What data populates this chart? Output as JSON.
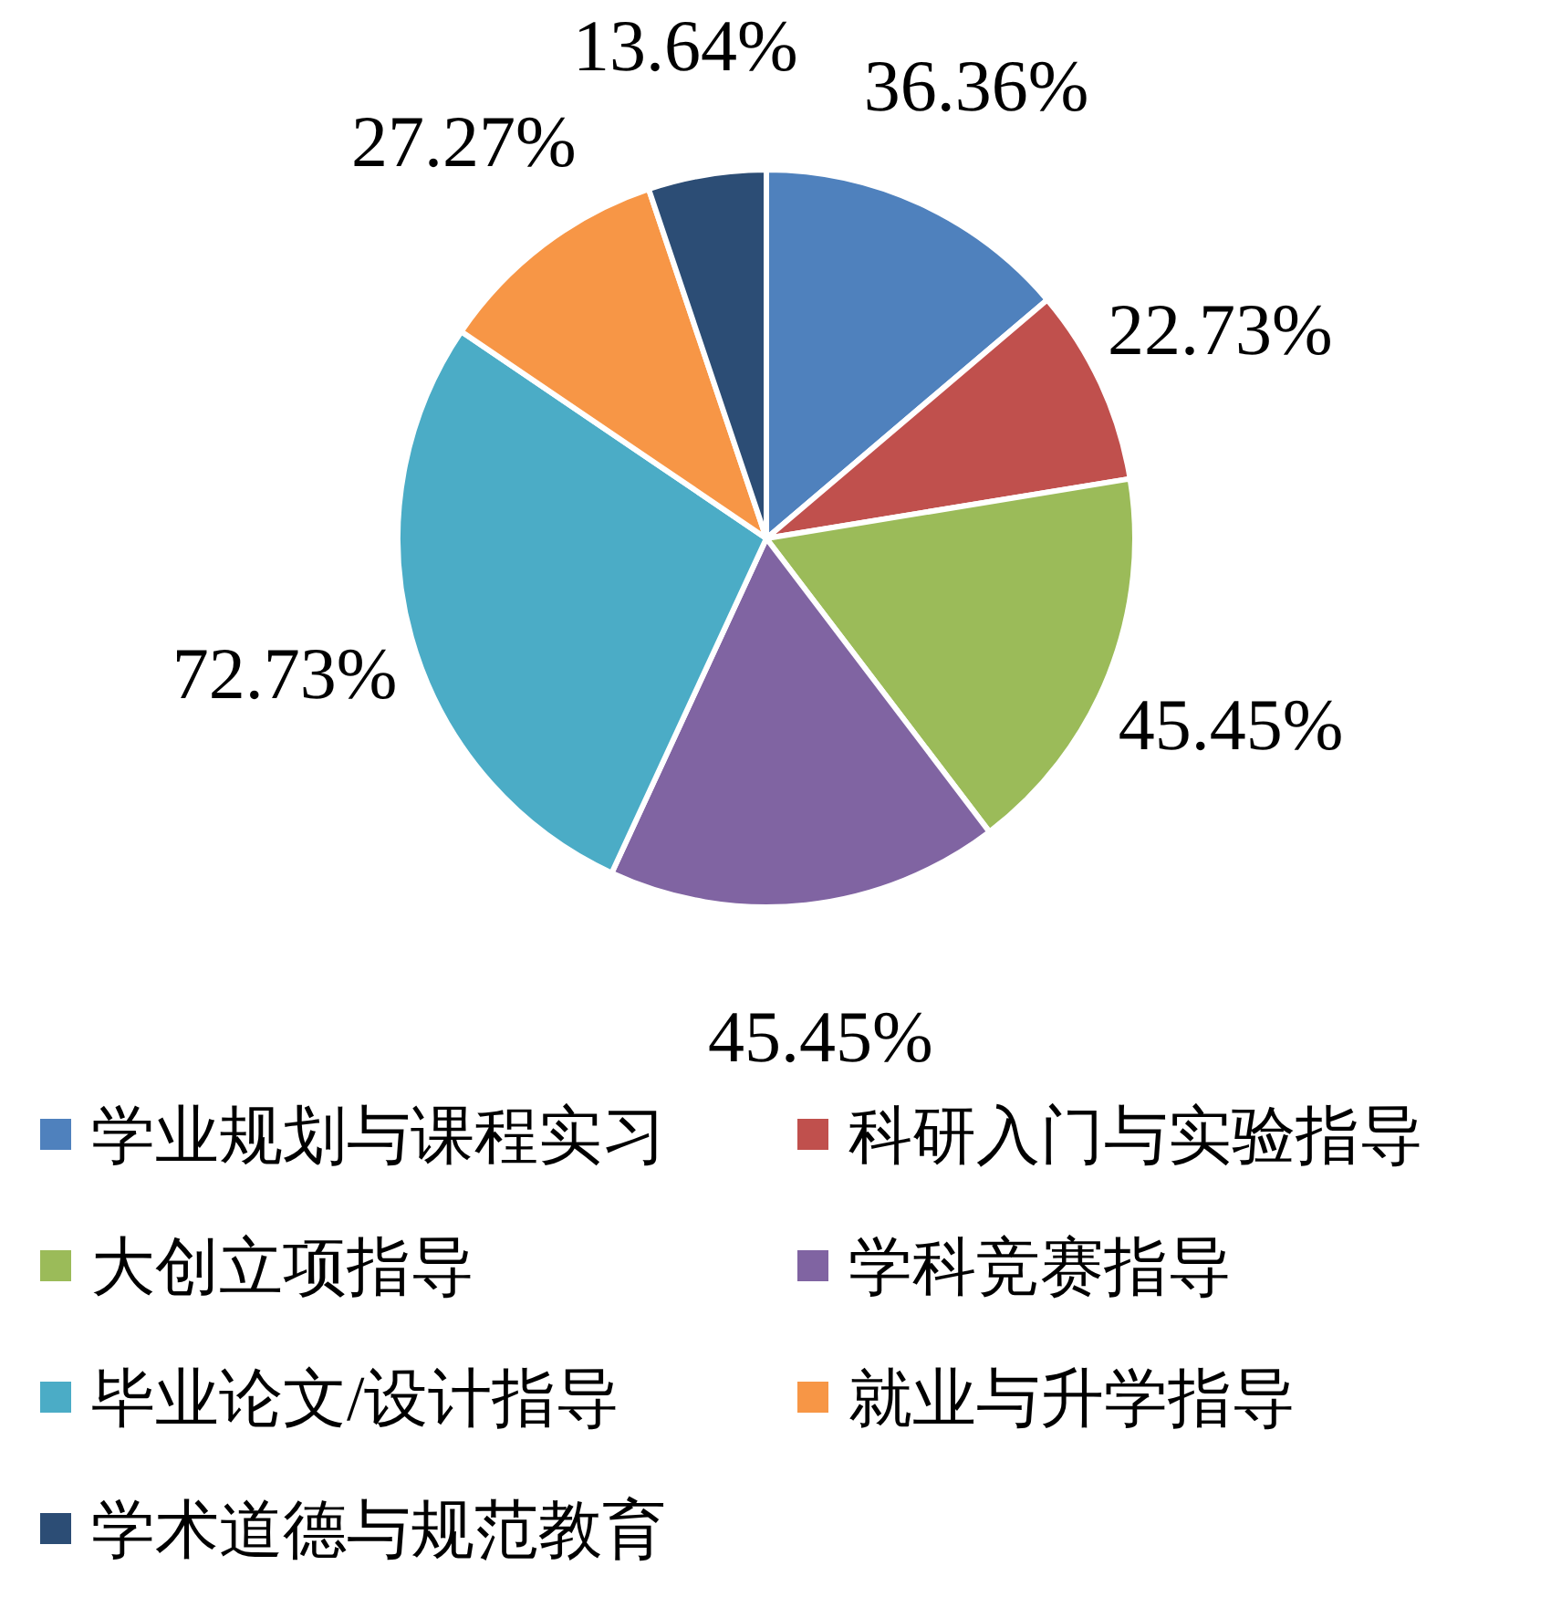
{
  "chart_data": {
    "type": "pie",
    "categories": [
      "学业规划与课程实习",
      "科研入门与实验指导",
      "大创立项指导",
      "学科竞赛指导",
      "毕业论文/设计指导",
      "就业与升学指导",
      "学术道德与规范教育"
    ],
    "values": [
      36.36,
      22.73,
      45.45,
      45.45,
      72.73,
      27.27,
      13.64
    ],
    "value_labels": [
      "36.36%",
      "22.73%",
      "45.45%",
      "45.45%",
      "72.73%",
      "27.27%",
      "13.64%"
    ],
    "colors": [
      "#4f81bd",
      "#c0504d",
      "#9bbb59",
      "#8064a2",
      "#4bacc6",
      "#f79646",
      "#2c4d75"
    ],
    "legend": "bottom"
  }
}
